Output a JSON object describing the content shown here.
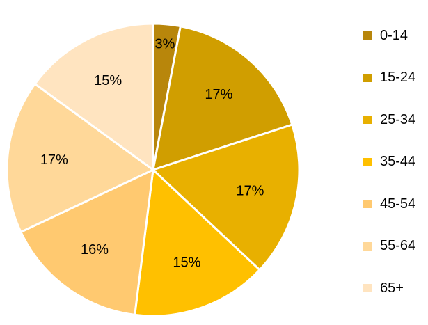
{
  "chart_data": {
    "type": "pie",
    "title": "",
    "categories": [
      "0-14",
      "15-24",
      "25-34",
      "35-44",
      "45-54",
      "55-64",
      "65+"
    ],
    "values": [
      3,
      17,
      17,
      15,
      16,
      17,
      15
    ],
    "labels": [
      "3%",
      "17%",
      "17%",
      "15%",
      "16%",
      "17%",
      "15%"
    ],
    "colors": [
      "#B8860B",
      "#D09E00",
      "#E8B000",
      "#FFC000",
      "#FFC970",
      "#FFD899",
      "#FFE4C0"
    ],
    "start_angle": "12 o'clock",
    "direction": "clockwise",
    "legend": "right"
  }
}
